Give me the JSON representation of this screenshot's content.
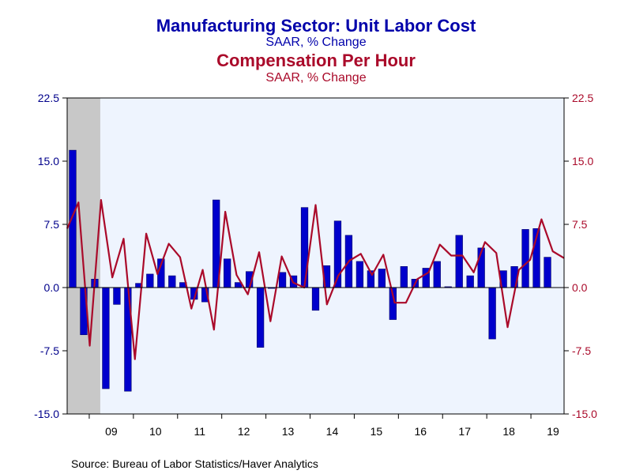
{
  "colors": {
    "bar": "#0000cc",
    "bar_edge": "#000066",
    "line": "#aa0a2a",
    "title1": "#0000aa",
    "title2": "#aa0a2a",
    "plot_bg": "#eef4fe",
    "recession": "#c8c8c8",
    "axis": "#000000",
    "left_tick": "#00008b",
    "right_tick": "#aa0a2a"
  },
  "chart_data": {
    "type": "bar+line",
    "title": "Manufacturing Sector: Unit Labor Cost",
    "subtitle": "SAAR, % Change",
    "title2": "Compensation Per Hour",
    "subtitle2": "SAAR, % Change",
    "source": "Source:  Bureau of Labor Statistics/Haver Analytics",
    "ylim": [
      -15.0,
      22.5
    ],
    "yticks": [
      "22.5",
      "15.0",
      "7.5",
      "0.0",
      "-7.5",
      "-15.0"
    ],
    "ytick_values": [
      22.5,
      15.0,
      7.5,
      0.0,
      -7.5,
      -15.0
    ],
    "year_labels": [
      "09",
      "10",
      "11",
      "12",
      "13",
      "14",
      "15",
      "16",
      "17",
      "18",
      "19"
    ],
    "first_quarter": "2008Q3",
    "recession_quarters": 3,
    "series": [
      {
        "name": "Manufacturing Sector: Unit Labor Cost",
        "kind": "bar",
        "axis": "left",
        "values": [
          16.3,
          -5.6,
          1.0,
          -12.0,
          -2.0,
          -12.3,
          0.5,
          1.6,
          3.4,
          1.4,
          0.6,
          -1.4,
          -1.7,
          10.4,
          3.4,
          0.6,
          1.9,
          -7.1,
          -0.1,
          1.8,
          1.4,
          9.5,
          -2.7,
          2.6,
          7.9,
          6.2,
          3.1,
          2.0,
          2.2,
          -3.8,
          2.5,
          1.0,
          2.3,
          3.1,
          0.1,
          6.2,
          1.4,
          4.7,
          -6.1,
          2.0,
          2.5,
          6.9,
          7.0,
          3.6
        ]
      },
      {
        "name": "Compensation Per Hour",
        "kind": "line",
        "axis": "right",
        "values": [
          7.0,
          10.1,
          -6.9,
          10.4,
          1.2,
          5.8,
          -8.5,
          6.4,
          1.6,
          5.2,
          3.6,
          -2.5,
          2.1,
          -5.0,
          9.0,
          1.5,
          -0.8,
          4.2,
          -4.0,
          3.7,
          0.6,
          0.0,
          9.8,
          -2.0,
          1.4,
          3.2,
          4.0,
          1.5,
          3.9,
          -1.8,
          -1.8,
          1.0,
          1.8,
          5.1,
          3.8,
          3.8,
          1.8,
          5.4,
          4.1,
          -4.7,
          2.1,
          3.3,
          8.1,
          4.3,
          3.5
        ]
      }
    ]
  }
}
